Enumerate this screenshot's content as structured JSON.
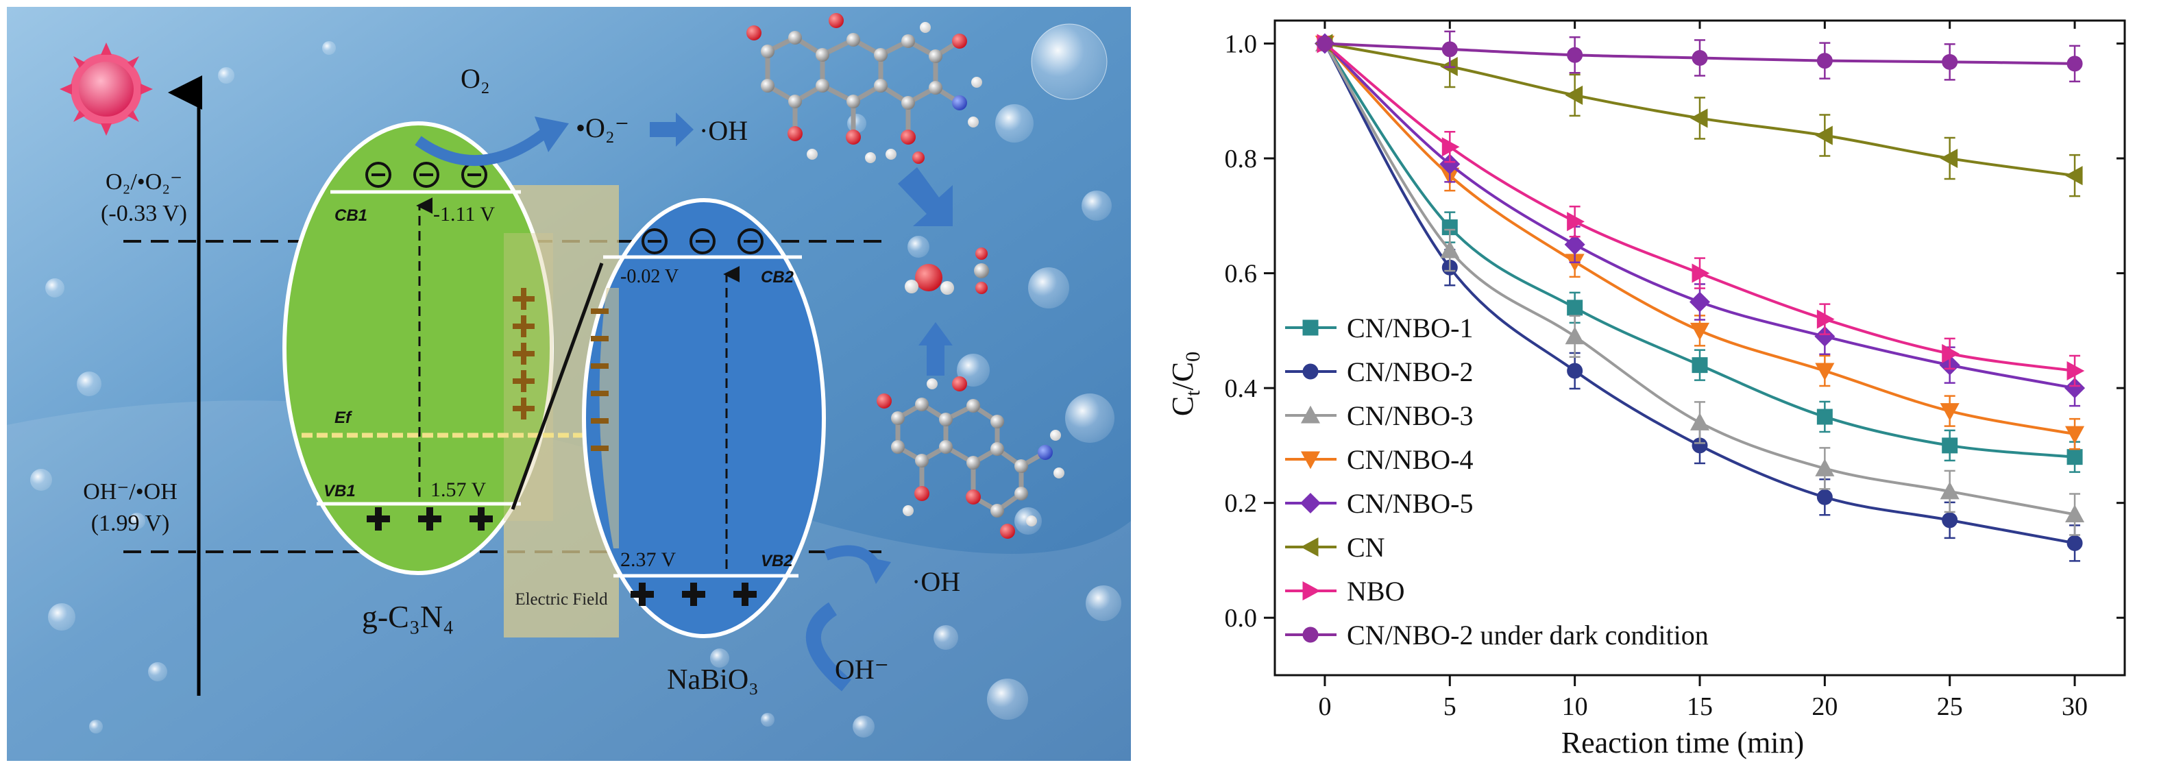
{
  "diagram": {
    "potential_labels": {
      "o2_pair": "O₂/•O₂⁻",
      "o2_value": "(-0.33 V)",
      "oh_pair": "OH⁻/•OH",
      "oh_value": "(1.99 V)"
    },
    "gcn": {
      "cb_label": "CB1",
      "cb_value": "-1.11 V",
      "vb_label": "VB1",
      "vb_value": "1.57 V",
      "ef_label": "Ef",
      "name": "g-C₃N₄"
    },
    "nbo": {
      "cb_label": "CB2",
      "cb_value": "-0.02 V",
      "vb_label": "VB2",
      "vb_value": "2.37 V",
      "name": "NaBiO₃"
    },
    "electric_field_label": "Electric Field",
    "species": {
      "o2": "O₂",
      "superoxide": "•O₂⁻",
      "oh_top": "·OH",
      "oh_right": "·OH",
      "hydroxide": "OH⁻"
    },
    "colors": {
      "background": "#5f95c4",
      "gcn_fill": "#7cc242",
      "nbo_fill": "#3a7cc8",
      "field_band": "#d7c98f",
      "sun": "#e8386a",
      "arrow_blue": "#3c78c4"
    }
  },
  "chart_data": {
    "type": "line",
    "xlabel": "Reaction time (min)",
    "ylabel": "Ct/C0",
    "x": [
      0,
      5,
      10,
      15,
      20,
      25,
      30
    ],
    "xlim": [
      -2,
      32
    ],
    "ylim": [
      -0.1,
      1.04
    ],
    "xticks": [
      0,
      5,
      10,
      15,
      20,
      25,
      30
    ],
    "yticks": [
      0.0,
      0.2,
      0.4,
      0.6,
      0.8,
      1.0
    ],
    "grid": false,
    "legend_position": "lower-left",
    "series": [
      {
        "name": "CN/NBO-1",
        "color": "#2a8a8c",
        "marker": "square",
        "values": [
          1.0,
          0.68,
          0.54,
          0.44,
          0.35,
          0.3,
          0.28
        ]
      },
      {
        "name": "CN/NBO-2",
        "color": "#2e3a8c",
        "marker": "circle",
        "values": [
          1.0,
          0.61,
          0.43,
          0.3,
          0.21,
          0.17,
          0.13
        ]
      },
      {
        "name": "CN/NBO-3",
        "color": "#9a9a9a",
        "marker": "triangle-up",
        "values": [
          1.0,
          0.64,
          0.49,
          0.34,
          0.26,
          0.22,
          0.18
        ]
      },
      {
        "name": "CN/NBO-4",
        "color": "#f07a1e",
        "marker": "triangle-down",
        "values": [
          1.0,
          0.77,
          0.62,
          0.5,
          0.43,
          0.36,
          0.32
        ]
      },
      {
        "name": "CN/NBO-5",
        "color": "#7a30b4",
        "marker": "diamond",
        "values": [
          1.0,
          0.79,
          0.65,
          0.55,
          0.49,
          0.44,
          0.4
        ]
      },
      {
        "name": "CN",
        "color": "#7f7f1a",
        "marker": "triangle-left",
        "values": [
          1.0,
          0.96,
          0.91,
          0.87,
          0.84,
          0.8,
          0.77
        ]
      },
      {
        "name": "NBO",
        "color": "#e6288c",
        "marker": "triangle-right",
        "values": [
          1.0,
          0.82,
          0.69,
          0.6,
          0.52,
          0.46,
          0.43
        ]
      },
      {
        "name": "CN/NBO-2 under dark condition",
        "color": "#8a2e9c",
        "marker": "circle",
        "values": [
          1.0,
          0.99,
          0.98,
          0.975,
          0.97,
          0.968,
          0.965
        ]
      }
    ]
  }
}
